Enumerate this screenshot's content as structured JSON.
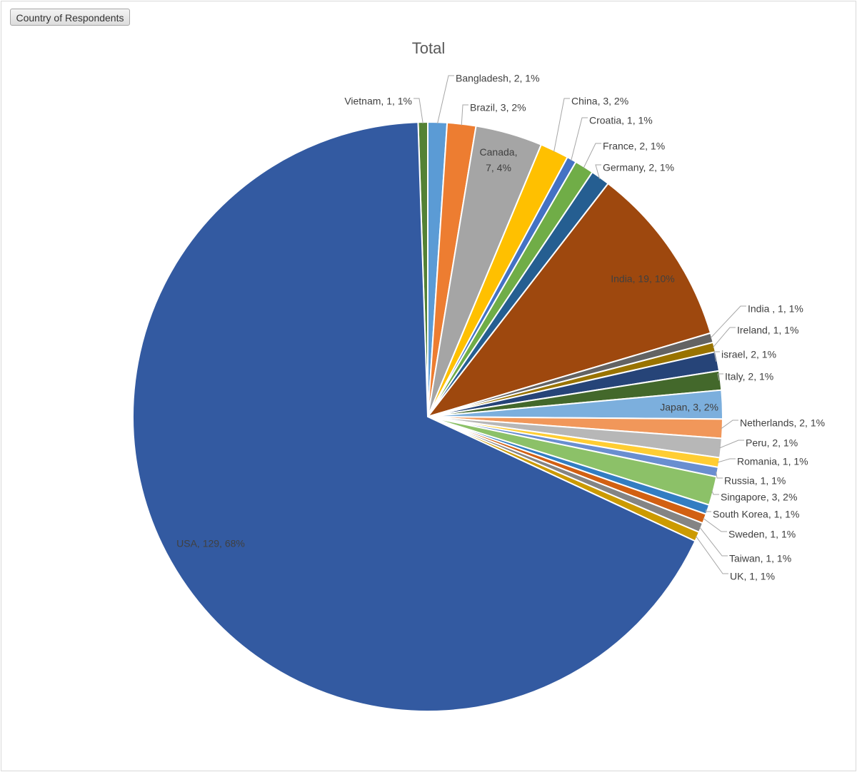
{
  "pivot": {
    "field_button": "Country of Respondents"
  },
  "chart_data": {
    "type": "pie",
    "title": "Total",
    "slices": [
      {
        "label": "Bangladesh",
        "value": 2,
        "percent": "1%",
        "color": "#5b9bd5",
        "label_text": "Bangladesh, 2, 1%"
      },
      {
        "label": "Brazil",
        "value": 3,
        "percent": "2%",
        "color": "#ed7d31",
        "label_text": "Brazil, 3, 2%"
      },
      {
        "label": "Canada",
        "value": 7,
        "percent": "4%",
        "color": "#a5a5a5",
        "label_text": "Canada, 7, 4%",
        "label_line1": "Canada,",
        "label_line2": "7, 4%"
      },
      {
        "label": "China",
        "value": 3,
        "percent": "2%",
        "color": "#ffc000",
        "label_text": "China, 3, 2%"
      },
      {
        "label": "Croatia",
        "value": 1,
        "percent": "1%",
        "color": "#4472c4",
        "label_text": "Croatia, 1, 1%"
      },
      {
        "label": "France",
        "value": 2,
        "percent": "1%",
        "color": "#70ad47",
        "label_text": "France, 2, 1%"
      },
      {
        "label": "Germany",
        "value": 2,
        "percent": "1%",
        "color": "#255e91",
        "label_text": "Germany, 2, 1%"
      },
      {
        "label": "India",
        "value": 19,
        "percent": "10%",
        "color": "#9e480e",
        "label_text": "India, 19, 10%"
      },
      {
        "label": "India ",
        "value": 1,
        "percent": "1%",
        "color": "#636363",
        "label_text": "India , 1, 1%"
      },
      {
        "label": "Ireland",
        "value": 1,
        "percent": "1%",
        "color": "#997300",
        "label_text": "Ireland, 1, 1%"
      },
      {
        "label": "israel",
        "value": 2,
        "percent": "1%",
        "color": "#264478",
        "label_text": "israel, 2, 1%"
      },
      {
        "label": "Italy",
        "value": 2,
        "percent": "1%",
        "color": "#43682b",
        "label_text": "Italy, 2, 1%"
      },
      {
        "label": "Japan",
        "value": 3,
        "percent": "2%",
        "color": "#7cafdd",
        "label_text": "Japan, 3, 2%"
      },
      {
        "label": "Netherlands",
        "value": 2,
        "percent": "1%",
        "color": "#f1975a",
        "label_text": "Netherlands, 2, 1%"
      },
      {
        "label": "Peru",
        "value": 2,
        "percent": "1%",
        "color": "#b7b7b7",
        "label_text": "Peru, 2, 1%"
      },
      {
        "label": "Romania",
        "value": 1,
        "percent": "1%",
        "color": "#ffcd33",
        "label_text": "Romania, 1, 1%"
      },
      {
        "label": "Russia",
        "value": 1,
        "percent": "1%",
        "color": "#698ed0",
        "label_text": "Russia, 1, 1%"
      },
      {
        "label": "Singapore",
        "value": 3,
        "percent": "2%",
        "color": "#8cc168",
        "label_text": "Singapore, 3, 2%"
      },
      {
        "label": "South Korea",
        "value": 1,
        "percent": "1%",
        "color": "#327dc2",
        "label_text": "South Korea, 1, 1%"
      },
      {
        "label": "Sweden",
        "value": 1,
        "percent": "1%",
        "color": "#d26012",
        "label_text": "Sweden, 1, 1%"
      },
      {
        "label": "Taiwan",
        "value": 1,
        "percent": "1%",
        "color": "#848484",
        "label_text": "Taiwan, 1, 1%"
      },
      {
        "label": "UK",
        "value": 1,
        "percent": "1%",
        "color": "#cc9a00",
        "label_text": "UK, 1, 1%"
      },
      {
        "label": "USA",
        "value": 129,
        "percent": "68%",
        "color": "#335aa1",
        "label_text": "USA, 129, 68%"
      },
      {
        "label": "Vietnam",
        "value": 1,
        "percent": "1%",
        "color": "#548235",
        "label_text": "Vietnam, 1, 1%"
      }
    ],
    "legend": "none"
  }
}
